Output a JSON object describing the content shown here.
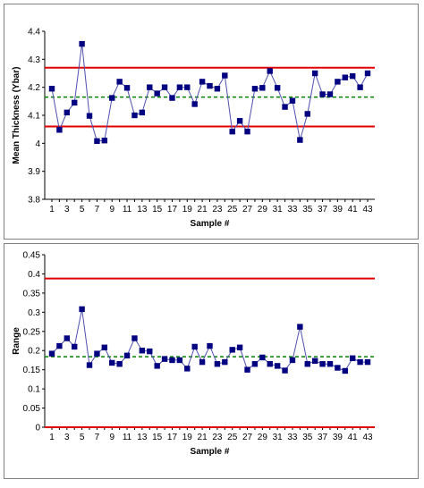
{
  "charts": [
    {
      "type": "line",
      "xlabel": "Sample #",
      "ylabel": "Mean Thickness (Ybar)",
      "ylim": [
        3.8,
        4.4
      ],
      "yticks": [
        "3.8",
        "3.9",
        "4",
        "4.1",
        "4.2",
        "4.3",
        "4.4"
      ],
      "x": [
        1,
        2,
        3,
        4,
        5,
        6,
        7,
        8,
        9,
        10,
        11,
        12,
        13,
        14,
        15,
        16,
        17,
        18,
        19,
        20,
        21,
        22,
        23,
        24,
        25,
        26,
        27,
        28,
        29,
        30,
        31,
        32,
        33,
        34,
        35,
        36,
        37,
        38,
        39,
        40,
        41,
        42,
        43
      ],
      "series": [
        {
          "values": [
            4.195,
            4.048,
            4.11,
            4.145,
            4.355,
            4.098,
            4.008,
            4.01,
            4.162,
            4.22,
            4.198,
            4.1,
            4.11,
            4.2,
            4.178,
            4.2,
            4.162,
            4.2,
            4.2,
            4.14,
            4.22,
            4.205,
            4.195,
            4.242,
            4.042,
            4.08,
            4.042,
            4.195,
            4.198,
            4.258,
            4.198,
            4.13,
            4.152,
            4.012,
            4.105,
            4.25,
            4.175,
            4.175,
            4.22,
            4.235,
            4.24,
            4.2,
            4.25
          ],
          "color": "#000080"
        }
      ],
      "control_lines": {
        "ucl": 4.27,
        "center": 4.165,
        "lcl": 4.06
      },
      "colors": {
        "limit": "#e00000",
        "center": "#008000"
      },
      "grid": false
    },
    {
      "type": "line",
      "xlabel": "Sample #",
      "ylabel": "Range",
      "ylim": [
        0,
        0.45
      ],
      "yticks": [
        "0",
        "0.05",
        "0.1",
        "0.15",
        "0.2",
        "0.25",
        "0.3",
        "0.35",
        "0.4",
        "0.45"
      ],
      "x": [
        1,
        2,
        3,
        4,
        5,
        6,
        7,
        8,
        9,
        10,
        11,
        12,
        13,
        14,
        15,
        16,
        17,
        18,
        19,
        20,
        21,
        22,
        23,
        24,
        25,
        26,
        27,
        28,
        29,
        30,
        31,
        32,
        33,
        34,
        35,
        36,
        37,
        38,
        39,
        40,
        41,
        42,
        43
      ],
      "series": [
        {
          "values": [
            0.192,
            0.212,
            0.232,
            0.21,
            0.308,
            0.162,
            0.192,
            0.208,
            0.168,
            0.165,
            0.187,
            0.232,
            0.2,
            0.198,
            0.16,
            0.178,
            0.175,
            0.175,
            0.153,
            0.21,
            0.17,
            0.212,
            0.165,
            0.17,
            0.202,
            0.208,
            0.15,
            0.165,
            0.182,
            0.165,
            0.16,
            0.148,
            0.175,
            0.262,
            0.165,
            0.173,
            0.165,
            0.165,
            0.155,
            0.147,
            0.18,
            0.17,
            0.17
          ],
          "color": "#000080"
        }
      ],
      "control_lines": {
        "ucl": 0.388,
        "center": 0.184,
        "lcl": 0
      },
      "colors": {
        "limit": "#e00000",
        "center": "#008000"
      },
      "grid": false
    }
  ],
  "chart_data": [
    {
      "type": "line",
      "xlabel": "Sample #",
      "ylabel": "Mean Thickness (Ybar)",
      "ylim": [
        3.8,
        4.4
      ],
      "x": [
        1,
        2,
        3,
        4,
        5,
        6,
        7,
        8,
        9,
        10,
        11,
        12,
        13,
        14,
        15,
        16,
        17,
        18,
        19,
        20,
        21,
        22,
        23,
        24,
        25,
        26,
        27,
        28,
        29,
        30,
        31,
        32,
        33,
        34,
        35,
        36,
        37,
        38,
        39,
        40,
        41,
        42,
        43
      ],
      "series": [
        {
          "values": [
            4.195,
            4.048,
            4.11,
            4.145,
            4.355,
            4.098,
            4.008,
            4.01,
            4.162,
            4.22,
            4.198,
            4.1,
            4.11,
            4.2,
            4.178,
            4.2,
            4.162,
            4.2,
            4.2,
            4.14,
            4.22,
            4.205,
            4.195,
            4.242,
            4.042,
            4.08,
            4.042,
            4.195,
            4.198,
            4.258,
            4.198,
            4.13,
            4.152,
            4.012,
            4.105,
            4.25,
            4.175,
            4.175,
            4.22,
            4.235,
            4.24,
            4.2,
            4.25
          ]
        }
      ],
      "control_lines": {
        "ucl": 4.27,
        "center": 4.165,
        "lcl": 4.06
      }
    },
    {
      "type": "line",
      "xlabel": "Sample #",
      "ylabel": "Range",
      "ylim": [
        0,
        0.45
      ],
      "x": [
        1,
        2,
        3,
        4,
        5,
        6,
        7,
        8,
        9,
        10,
        11,
        12,
        13,
        14,
        15,
        16,
        17,
        18,
        19,
        20,
        21,
        22,
        23,
        24,
        25,
        26,
        27,
        28,
        29,
        30,
        31,
        32,
        33,
        34,
        35,
        36,
        37,
        38,
        39,
        40,
        41,
        42,
        43
      ],
      "series": [
        {
          "values": [
            0.192,
            0.212,
            0.232,
            0.21,
            0.308,
            0.162,
            0.192,
            0.208,
            0.168,
            0.165,
            0.187,
            0.232,
            0.2,
            0.198,
            0.16,
            0.178,
            0.175,
            0.175,
            0.153,
            0.21,
            0.17,
            0.212,
            0.165,
            0.17,
            0.202,
            0.208,
            0.15,
            0.165,
            0.182,
            0.165,
            0.16,
            0.148,
            0.175,
            0.262,
            0.165,
            0.173,
            0.165,
            0.165,
            0.155,
            0.147,
            0.18,
            0.17,
            0.17
          ]
        }
      ],
      "control_lines": {
        "ucl": 0.388,
        "center": 0.184,
        "lcl": 0
      }
    }
  ]
}
